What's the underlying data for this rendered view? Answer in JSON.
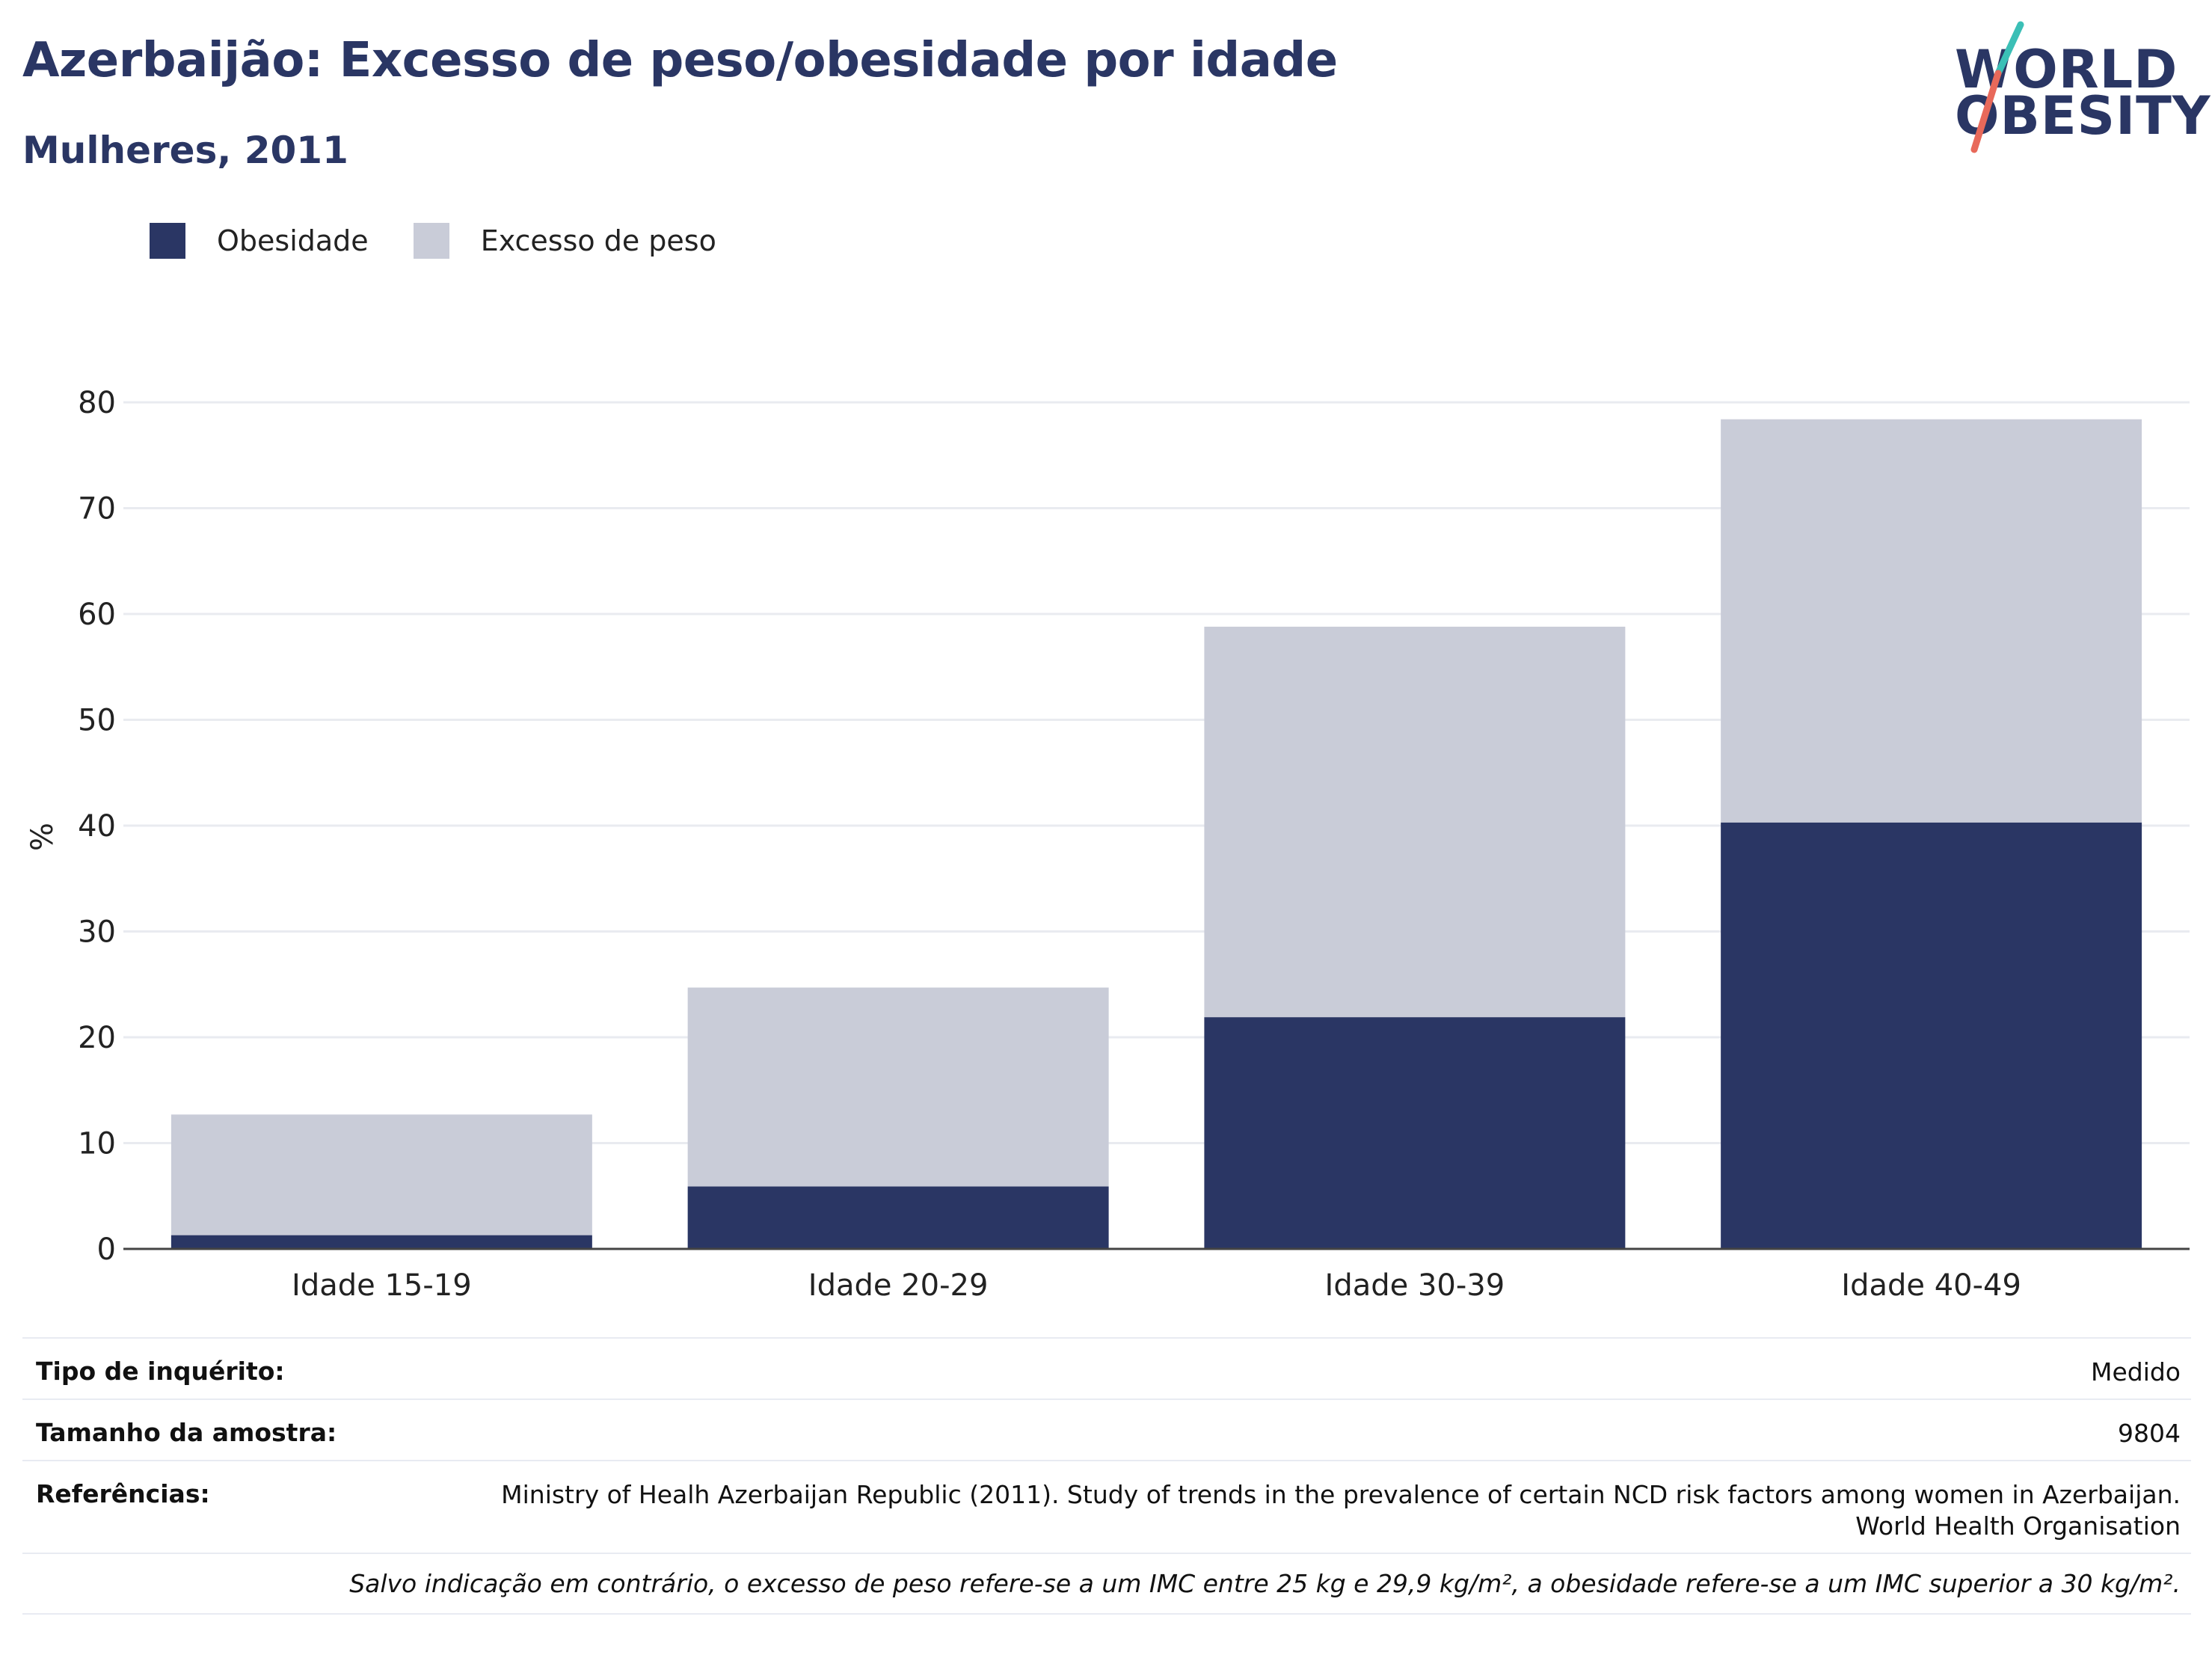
{
  "header": {
    "title": "Azerbaijão: Excesso de peso/obesidade por idade",
    "subtitle": "Mulheres, 2011"
  },
  "logo": {
    "line1": "WORLD",
    "line2": "OBESITY",
    "accent_teal": "#3bbfb6",
    "accent_coral": "#e8695a"
  },
  "colors": {
    "obesity": "#2a3664",
    "overweight": "#c9ccd8",
    "text": "#2a3664"
  },
  "chart_data": {
    "type": "bar",
    "stacked": true,
    "categories": [
      "Idade 15-19",
      "Idade 20-29",
      "Idade 30-39",
      "Idade 40-49"
    ],
    "series": [
      {
        "name": "Obesidade",
        "values": [
          1.3,
          5.9,
          21.9,
          40.3
        ]
      },
      {
        "name": "Excesso de peso",
        "values": [
          11.4,
          18.8,
          36.9,
          38.1
        ]
      }
    ],
    "ylabel": "%",
    "ylim": [
      0,
      80
    ],
    "yticks": [
      0,
      10,
      20,
      30,
      40,
      50,
      60,
      70,
      80
    ],
    "grid": true,
    "legend_position": "top-left"
  },
  "info": {
    "survey_type_label": "Tipo de inquérito:",
    "survey_type_value": "Medido",
    "sample_size_label": "Tamanho da amostra:",
    "sample_size_value": "9804",
    "references_label": "Referências:",
    "references_value_line1": "Ministry of Healh Azerbaijan Republic (2011). Study of trends in the prevalence of certain NCD risk factors among women in Azerbaijan.",
    "references_value_line2": "World Health Organisation",
    "note": "Salvo indicação em contrário, o excesso de peso refere-se a um IMC entre 25 kg e 29,9 kg/m², a obesidade refere-se a um IMC superior a 30 kg/m²."
  }
}
